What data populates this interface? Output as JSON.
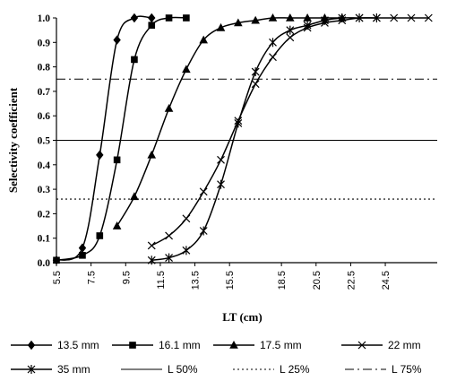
{
  "chart_data": {
    "type": "line",
    "title": "",
    "xlabel": "LT (cm)",
    "ylabel": "Selectivity coefficient",
    "xlim": [
      5.5,
      27.5
    ],
    "ylim": [
      0.0,
      1.0
    ],
    "x_ticks": [
      "5.5",
      "7.5",
      "9.5",
      "11.5",
      "13.5",
      "15.5",
      "18.5",
      "20.5",
      "22.5",
      "24.5"
    ],
    "y_ticks": [
      "0.0",
      "0.1",
      "0.2",
      "0.3",
      "0.4",
      "0.5",
      "0.6",
      "0.7",
      "0.8",
      "0.9",
      "1.0"
    ],
    "grid": false,
    "legend_position": "bottom",
    "series": [
      {
        "name": "13.5 mm",
        "marker": "diamond",
        "color": "#000000",
        "x": [
          5.5,
          7.0,
          8.0,
          9.0,
          10.0,
          11.0
        ],
        "y": [
          0.01,
          0.06,
          0.44,
          0.91,
          1.0,
          1.0
        ]
      },
      {
        "name": "16.1 mm",
        "marker": "square",
        "color": "#000000",
        "x": [
          5.5,
          7.0,
          8.0,
          9.0,
          10.0,
          11.0,
          12.0,
          13.0
        ],
        "y": [
          0.01,
          0.03,
          0.11,
          0.42,
          0.83,
          0.97,
          1.0,
          1.0
        ]
      },
      {
        "name": "17.5 mm",
        "marker": "triangle",
        "color": "#000000",
        "x": [
          9.0,
          10.0,
          11.0,
          12.0,
          13.0,
          14.0,
          15.0,
          16.0,
          17.0,
          18.0,
          19.0,
          20.0,
          21.0,
          22.0
        ],
        "y": [
          0.15,
          0.27,
          0.44,
          0.63,
          0.79,
          0.91,
          0.96,
          0.98,
          0.99,
          1.0,
          1.0,
          1.0,
          1.0,
          1.0
        ]
      },
      {
        "name": "22 mm",
        "marker": "x",
        "color": "#000000",
        "x": [
          11.0,
          12.0,
          13.0,
          14.0,
          15.0,
          16.0,
          17.0,
          18.0,
          19.0,
          20.0,
          21.0,
          22.0,
          23.0,
          24.0,
          25.0,
          26.0,
          27.0
        ],
        "y": [
          0.07,
          0.11,
          0.18,
          0.29,
          0.42,
          0.58,
          0.73,
          0.84,
          0.92,
          0.96,
          0.98,
          0.99,
          1.0,
          1.0,
          1.0,
          1.0,
          1.0
        ]
      },
      {
        "name": "35 mm",
        "marker": "asterisk",
        "color": "#000000",
        "x": [
          11.0,
          12.0,
          13.0,
          14.0,
          15.0,
          16.0,
          17.0,
          18.0,
          19.0,
          20.0,
          21.0,
          22.0,
          23.0,
          24.0
        ],
        "y": [
          0.01,
          0.02,
          0.05,
          0.13,
          0.32,
          0.57,
          0.78,
          0.9,
          0.95,
          0.97,
          0.99,
          1.0,
          1.0,
          1.0
        ]
      },
      {
        "name": "L 50%",
        "style": "solid",
        "y": [
          0.5
        ]
      },
      {
        "name": "L 25%",
        "style": "dotted",
        "y": [
          0.26
        ]
      },
      {
        "name": "L 75%",
        "style": "dashdot",
        "y": [
          0.75
        ]
      }
    ]
  }
}
